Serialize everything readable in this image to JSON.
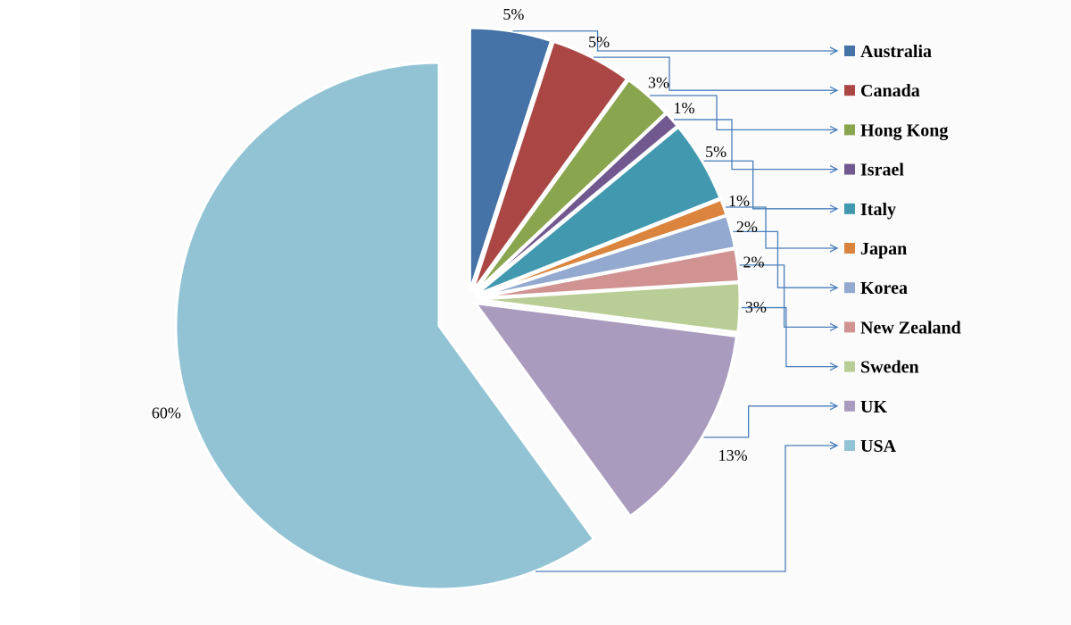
{
  "chart_data": {
    "type": "pie",
    "title": "",
    "legend_position": "right",
    "exploded": true,
    "slices": [
      {
        "name": "Australia",
        "value": 5,
        "label": "5%",
        "color": "#4572A7"
      },
      {
        "name": "Canada",
        "value": 5,
        "label": "5%",
        "color": "#AA4643"
      },
      {
        "name": "Hong Kong",
        "value": 3,
        "label": "3%",
        "color": "#89A54E"
      },
      {
        "name": "Israel",
        "value": 1,
        "label": "1%",
        "color": "#71588F"
      },
      {
        "name": "Italy",
        "value": 5,
        "label": "5%",
        "color": "#4198AF"
      },
      {
        "name": "Japan",
        "value": 1,
        "label": "1%",
        "color": "#DB843D"
      },
      {
        "name": "Korea",
        "value": 2,
        "label": "2%",
        "color": "#93A9CF"
      },
      {
        "name": "New Zealand",
        "value": 2,
        "label": "2%",
        "color": "#D19392"
      },
      {
        "name": "Sweden",
        "value": 3,
        "label": "3%",
        "color": "#B9CD96"
      },
      {
        "name": "UK",
        "value": 13,
        "label": "13%",
        "color": "#A99BBD"
      },
      {
        "name": "USA",
        "value": 60,
        "label": "60%",
        "color": "#92C3D4"
      }
    ]
  }
}
